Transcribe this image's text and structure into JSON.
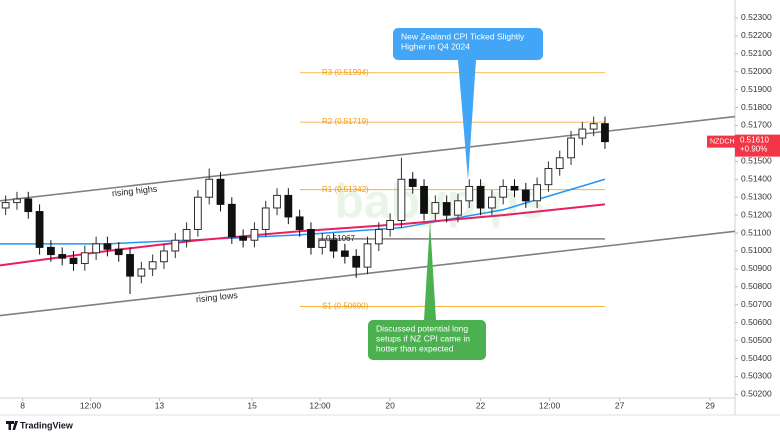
{
  "chart_data": {
    "type": "candlestick",
    "symbol": "NZDCHF",
    "last_price": {
      "value": 0.5161,
      "label": "0.51610"
    },
    "change": "+0.90%",
    "brand": "TradingView",
    "watermark": "babypips",
    "up_color": "#2f2f2f",
    "down_color": "#111111",
    "grid": false,
    "ylim": [
      0.5018,
      0.524
    ],
    "xlim": [
      -0.5,
      64.5
    ],
    "yticks": [
      {
        "value": 0.502,
        "label": "0.50200"
      },
      {
        "value": 0.503,
        "label": "0.50300"
      },
      {
        "value": 0.504,
        "label": "0.50400"
      },
      {
        "value": 0.505,
        "label": "0.50500"
      },
      {
        "value": 0.506,
        "label": "0.50600"
      },
      {
        "value": 0.507,
        "label": "0.50700"
      },
      {
        "value": 0.508,
        "label": "0.50800"
      },
      {
        "value": 0.509,
        "label": "0.50900"
      },
      {
        "value": 0.51,
        "label": "0.51000"
      },
      {
        "value": 0.511,
        "label": "0.51100"
      },
      {
        "value": 0.512,
        "label": "0.51200"
      },
      {
        "value": 0.513,
        "label": "0.51300"
      },
      {
        "value": 0.514,
        "label": "0.51400"
      },
      {
        "value": 0.515,
        "label": "0.51500"
      },
      {
        "value": 0.516,
        "label": "0.51600"
      },
      {
        "value": 0.517,
        "label": "0.51700"
      },
      {
        "value": 0.518,
        "label": "0.51800"
      },
      {
        "value": 0.519,
        "label": "0.51900"
      },
      {
        "value": 0.52,
        "label": "0.52000"
      },
      {
        "value": 0.521,
        "label": "0.52100"
      },
      {
        "value": 0.522,
        "label": "0.52200"
      },
      {
        "value": 0.523,
        "label": "0.52300"
      }
    ],
    "xticks": [
      {
        "value": 1.5,
        "label": "8"
      },
      {
        "value": 7.5,
        "label": "12:00"
      },
      {
        "value": 13.6,
        "label": "13"
      },
      {
        "value": 21.8,
        "label": "15"
      },
      {
        "value": 27.8,
        "label": "12:00"
      },
      {
        "value": 34,
        "label": "20"
      },
      {
        "value": 42,
        "label": "22"
      },
      {
        "value": 48.1,
        "label": "12:00"
      },
      {
        "value": 54.3,
        "label": "27"
      },
      {
        "value": 62.3,
        "label": "29"
      }
    ],
    "x": [
      0,
      1,
      2,
      3,
      4,
      5,
      6,
      7,
      8,
      9,
      10,
      11,
      12,
      13,
      14,
      15,
      16,
      17,
      18,
      19,
      20,
      21,
      22,
      23,
      24,
      25,
      26,
      27,
      28,
      29,
      30,
      31,
      32,
      33,
      34,
      35,
      36,
      37,
      38,
      39,
      40,
      41,
      42,
      43,
      44,
      45,
      46,
      47,
      48,
      49,
      50,
      51,
      52,
      53
    ],
    "open": [
      0.5124,
      0.5127,
      0.5129,
      0.5122,
      0.5102,
      0.5098,
      0.5096,
      0.5093,
      0.5099,
      0.5104,
      0.5101,
      0.5098,
      0.5086,
      0.509,
      0.5094,
      0.51,
      0.5106,
      0.5112,
      0.513,
      0.514,
      0.5126,
      0.5108,
      0.5106,
      0.5112,
      0.5124,
      0.5131,
      0.5119,
      0.5112,
      0.5102,
      0.5106,
      0.51,
      0.5097,
      0.5091,
      0.5104,
      0.5112,
      0.5117,
      0.514,
      0.5136,
      0.5121,
      0.5127,
      0.512,
      0.5128,
      0.5136,
      0.5124,
      0.513,
      0.5136,
      0.5134,
      0.5128,
      0.5137,
      0.5146,
      0.5152,
      0.5163,
      0.5168,
      0.5171
    ],
    "high": [
      0.5131,
      0.5133,
      0.5133,
      0.5126,
      0.5106,
      0.5102,
      0.51,
      0.5103,
      0.5108,
      0.5108,
      0.5105,
      0.5102,
      0.5094,
      0.5098,
      0.5104,
      0.511,
      0.5116,
      0.5134,
      0.5146,
      0.5144,
      0.513,
      0.5112,
      0.5116,
      0.5128,
      0.5135,
      0.5135,
      0.5123,
      0.5116,
      0.511,
      0.511,
      0.5104,
      0.5101,
      0.5108,
      0.5116,
      0.5121,
      0.5152,
      0.5144,
      0.514,
      0.5131,
      0.5131,
      0.5132,
      0.514,
      0.514,
      0.5134,
      0.514,
      0.514,
      0.5138,
      0.5141,
      0.515,
      0.5156,
      0.5167,
      0.5172,
      0.5175,
      0.5175
    ],
    "low": [
      0.512,
      0.5123,
      0.5118,
      0.5098,
      0.5094,
      0.5092,
      0.5089,
      0.5089,
      0.5095,
      0.5097,
      0.5094,
      0.5076,
      0.5082,
      0.5086,
      0.509,
      0.5096,
      0.5102,
      0.5108,
      0.5126,
      0.5122,
      0.5104,
      0.5102,
      0.5102,
      0.5108,
      0.512,
      0.5115,
      0.5108,
      0.5098,
      0.5098,
      0.5096,
      0.5093,
      0.5085,
      0.5087,
      0.51,
      0.5108,
      0.5113,
      0.5132,
      0.5117,
      0.5117,
      0.5116,
      0.5116,
      0.5124,
      0.512,
      0.512,
      0.5126,
      0.513,
      0.5124,
      0.5124,
      0.5133,
      0.5142,
      0.5148,
      0.5159,
      0.5164,
      0.5157
    ],
    "close": [
      0.5127,
      0.5129,
      0.5122,
      0.5102,
      0.5098,
      0.5096,
      0.5093,
      0.5099,
      0.5104,
      0.5101,
      0.5098,
      0.5086,
      0.509,
      0.5094,
      0.51,
      0.5106,
      0.5112,
      0.513,
      0.514,
      0.5126,
      0.5108,
      0.5106,
      0.5112,
      0.5124,
      0.5131,
      0.5119,
      0.5112,
      0.5102,
      0.5106,
      0.51,
      0.5097,
      0.5091,
      0.5104,
      0.5112,
      0.5117,
      0.514,
      0.5136,
      0.5121,
      0.5127,
      0.512,
      0.5128,
      0.5136,
      0.5124,
      0.513,
      0.5136,
      0.5134,
      0.5128,
      0.5137,
      0.5146,
      0.5152,
      0.5163,
      0.5168,
      0.5171,
      0.5161
    ],
    "series": [
      {
        "color": "#2196f3",
        "x": [
          -0.5,
          9,
          16,
          26,
          35,
          44,
          53
        ],
        "values": [
          0.5104,
          0.5104,
          0.5106,
          0.5109,
          0.5113,
          0.5123,
          0.514
        ]
      },
      {
        "color": "#e91e63",
        "x": [
          -0.5,
          9,
          17,
          26,
          35,
          44,
          53
        ],
        "values": [
          0.5092,
          0.51,
          0.5106,
          0.5111,
          0.5115,
          0.512,
          0.5126
        ]
      }
    ],
    "channels": [
      {
        "name": "rising highs",
        "x": [
          -0.5,
          64.5
        ],
        "values": [
          0.5128,
          0.5175
        ]
      },
      {
        "name": "rising lows",
        "x": [
          -0.5,
          64.5
        ],
        "values": [
          0.5064,
          0.5111
        ]
      }
    ],
    "levels": [
      {
        "label": "R3 (0.51994)",
        "value": 0.51994
      },
      {
        "label": "R2 (0.51719)",
        "value": 0.51719
      },
      {
        "label": "R1 (0.51342)",
        "value": 0.51342
      },
      {
        "label": "S1 (0.50690)",
        "value": 0.5069
      }
    ],
    "pivot": {
      "label": "0.51067",
      "value": 0.51067
    },
    "annotations": [
      {
        "text": [
          "New Zealand CPI Ticked Slightly",
          "Higher in Q4 2024"
        ],
        "color": "#42a5f5"
      },
      {
        "text": [
          "Discussed potential long",
          "setups if NZ CPI came in",
          "hotter than expected"
        ],
        "color": "#4caf50"
      }
    ]
  }
}
